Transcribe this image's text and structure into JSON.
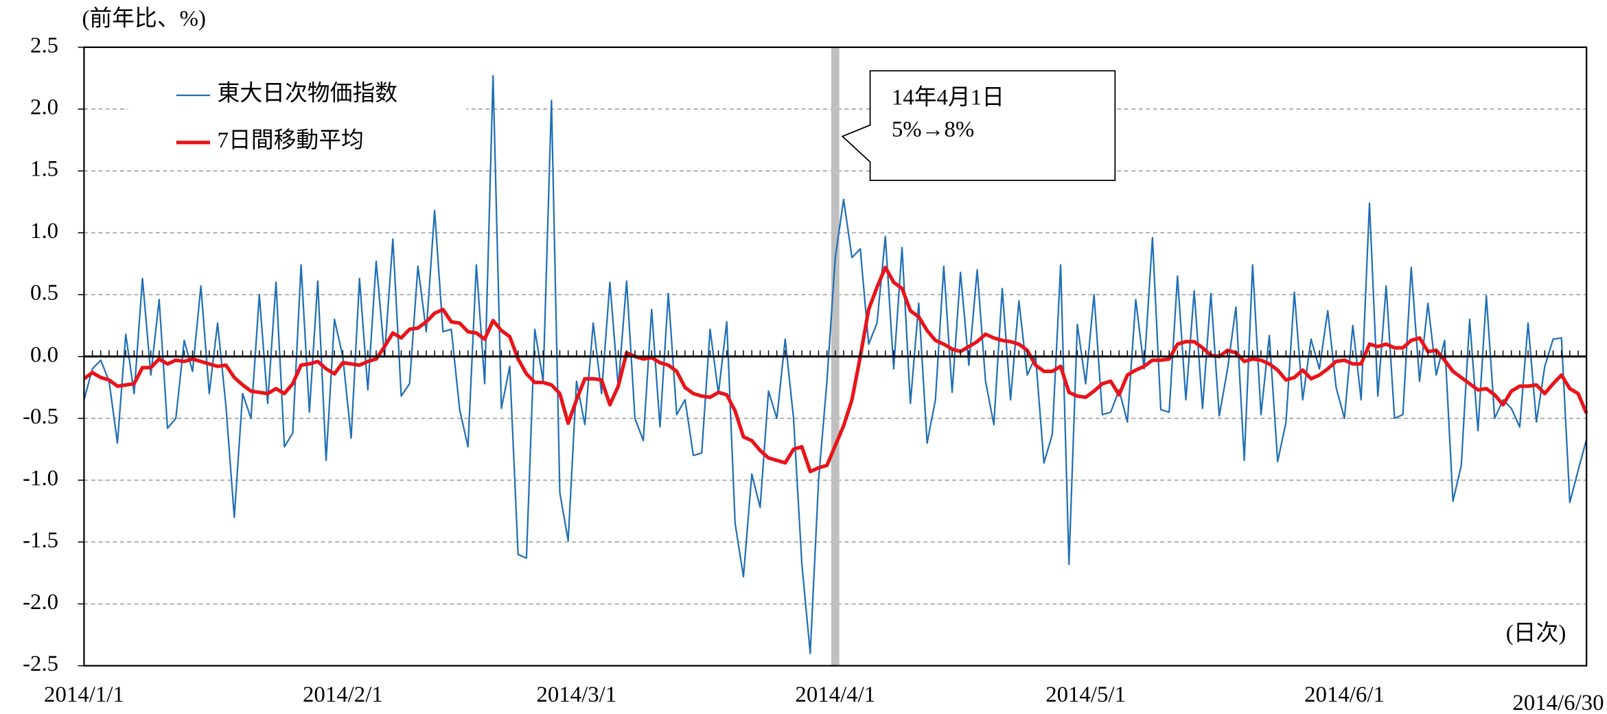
{
  "chart_data": {
    "type": "line",
    "y_unit_label": "(前年比、%)",
    "x_unit_label": "(日次)",
    "annotation": {
      "lines": [
        "14年4月1日",
        "5%→8%"
      ],
      "x": "2014/4/1",
      "line_color": "#c0c0c0"
    },
    "categories": [
      "2014/1/1",
      null,
      null,
      null,
      null,
      null,
      null,
      null,
      null,
      null,
      null,
      null,
      null,
      null,
      null,
      null,
      null,
      null,
      null,
      null,
      null,
      null,
      null,
      null,
      null,
      null,
      null,
      null,
      null,
      null,
      null,
      "2014/2/1",
      null,
      null,
      null,
      null,
      null,
      null,
      null,
      null,
      null,
      null,
      null,
      null,
      null,
      null,
      null,
      null,
      null,
      null,
      null,
      null,
      null,
      null,
      null,
      null,
      null,
      null,
      null,
      "2014/3/1",
      null,
      null,
      null,
      null,
      null,
      null,
      null,
      null,
      null,
      null,
      null,
      null,
      null,
      null,
      null,
      null,
      null,
      null,
      null,
      null,
      null,
      null,
      null,
      null,
      null,
      null,
      null,
      null,
      null,
      null,
      "2014/4/1",
      null,
      null,
      null,
      null,
      null,
      null,
      null,
      null,
      null,
      null,
      null,
      null,
      null,
      null,
      null,
      null,
      null,
      null,
      null,
      null,
      null,
      null,
      null,
      null,
      null,
      null,
      null,
      null,
      null,
      "2014/5/1",
      null,
      null,
      null,
      null,
      null,
      null,
      null,
      null,
      null,
      null,
      null,
      null,
      null,
      null,
      null,
      null,
      null,
      null,
      null,
      null,
      null,
      null,
      null,
      null,
      null,
      null,
      null,
      null,
      null,
      null,
      "2014/6/1",
      null,
      null,
      null,
      null,
      null,
      null,
      null,
      null,
      null,
      null,
      null,
      null,
      null,
      null,
      null,
      null,
      null,
      null,
      null,
      null,
      null,
      null,
      null,
      null,
      null,
      null,
      null,
      null,
      "2014/6/30"
    ],
    "series": [
      {
        "name": "東大日次物価指数",
        "color": "#1f6fb5",
        "width": 1.5,
        "values": [
          -0.35,
          -0.1,
          -0.03,
          -0.2,
          -0.7,
          0.18,
          -0.3,
          0.63,
          -0.15,
          0.46,
          -0.58,
          -0.5,
          0.13,
          -0.12,
          0.57,
          -0.3,
          0.27,
          -0.4,
          -1.3,
          -0.3,
          -0.5,
          0.5,
          -0.38,
          0.6,
          -0.73,
          -0.62,
          0.74,
          -0.45,
          0.61,
          -0.84,
          0.3,
          0.0,
          -0.66,
          0.63,
          -0.27,
          0.77,
          0.0,
          0.95,
          -0.32,
          -0.22,
          0.73,
          0.2,
          1.18,
          0.2,
          0.22,
          -0.43,
          -0.73,
          0.74,
          -0.22,
          2.27,
          -0.42,
          -0.08,
          -1.6,
          -1.63,
          0.22,
          -0.2,
          2.07,
          -1.1,
          -1.49,
          -0.2,
          -0.55,
          0.27,
          -0.3,
          0.6,
          -0.25,
          0.61,
          -0.5,
          -0.68,
          0.38,
          -0.57,
          0.51,
          -0.47,
          -0.35,
          -0.8,
          -0.78,
          0.22,
          -0.3,
          0.28,
          -1.35,
          -1.78,
          -0.95,
          -1.22,
          -0.28,
          -0.5,
          0.14,
          -0.5,
          -1.68,
          -2.4,
          -1.0,
          -0.2,
          0.8,
          1.27,
          0.8,
          0.87,
          0.1,
          0.27,
          0.97,
          -0.1,
          0.88,
          -0.38,
          0.43,
          -0.7,
          -0.35,
          0.73,
          -0.29,
          0.68,
          -0.07,
          0.7,
          -0.2,
          -0.55,
          0.55,
          -0.35,
          0.45,
          -0.15,
          0.0,
          -0.86,
          -0.63,
          0.74,
          -1.68,
          0.26,
          -0.22,
          0.5,
          -0.47,
          -0.45,
          -0.27,
          -0.53,
          0.46,
          -0.1,
          0.96,
          -0.43,
          -0.45,
          0.65,
          -0.35,
          0.53,
          -0.42,
          0.51,
          -0.48,
          -0.1,
          0.4,
          -0.84,
          0.74,
          -0.47,
          0.17,
          -0.85,
          -0.53,
          0.52,
          -0.35,
          0.14,
          -0.1,
          0.37,
          -0.25,
          -0.5,
          0.25,
          -0.35,
          1.24,
          -0.32,
          0.57,
          -0.5,
          -0.47,
          0.72,
          -0.2,
          0.43,
          -0.15,
          0.13,
          -1.17,
          -0.88,
          0.3,
          -0.6,
          0.49,
          -0.5,
          -0.35,
          -0.42,
          -0.57,
          0.27,
          -0.53,
          -0.08,
          0.14,
          0.15,
          -1.18,
          -0.92,
          -0.67
        ]
      },
      {
        "name": "7日間移動平均",
        "color": "#e8141a",
        "width": 3.5,
        "values": [
          -0.18,
          -0.13,
          -0.17,
          -0.19,
          -0.24,
          -0.23,
          -0.22,
          -0.09,
          -0.09,
          -0.02,
          -0.06,
          -0.03,
          -0.04,
          -0.02,
          -0.04,
          -0.06,
          -0.08,
          -0.07,
          -0.17,
          -0.23,
          -0.28,
          -0.29,
          -0.3,
          -0.26,
          -0.3,
          -0.22,
          -0.07,
          -0.06,
          -0.04,
          -0.1,
          -0.14,
          -0.05,
          -0.06,
          -0.07,
          -0.04,
          -0.02,
          0.08,
          0.19,
          0.15,
          0.22,
          0.23,
          0.28,
          0.35,
          0.38,
          0.28,
          0.27,
          0.2,
          0.19,
          0.14,
          0.29,
          0.21,
          0.16,
          -0.02,
          -0.14,
          -0.21,
          -0.21,
          -0.23,
          -0.3,
          -0.54,
          -0.35,
          -0.18,
          -0.18,
          -0.19,
          -0.39,
          -0.24,
          0.03,
          0.0,
          -0.02,
          -0.01,
          -0.05,
          -0.07,
          -0.12,
          -0.25,
          -0.3,
          -0.32,
          -0.33,
          -0.29,
          -0.31,
          -0.44,
          -0.65,
          -0.68,
          -0.76,
          -0.82,
          -0.84,
          -0.86,
          -0.75,
          -0.73,
          -0.93,
          -0.9,
          -0.88,
          -0.72,
          -0.56,
          -0.35,
          0.0,
          0.38,
          0.56,
          0.72,
          0.6,
          0.55,
          0.37,
          0.32,
          0.21,
          0.13,
          0.1,
          0.06,
          0.04,
          0.08,
          0.12,
          0.18,
          0.15,
          0.13,
          0.12,
          0.1,
          0.05,
          -0.07,
          -0.12,
          -0.12,
          -0.08,
          -0.29,
          -0.32,
          -0.33,
          -0.28,
          -0.22,
          -0.2,
          -0.31,
          -0.15,
          -0.11,
          -0.08,
          -0.03,
          -0.03,
          -0.02,
          0.1,
          0.12,
          0.12,
          0.07,
          0.01,
          0.0,
          0.05,
          0.03,
          -0.04,
          -0.02,
          -0.03,
          -0.06,
          -0.11,
          -0.19,
          -0.17,
          -0.11,
          -0.18,
          -0.15,
          -0.1,
          -0.04,
          -0.03,
          -0.06,
          -0.06,
          0.1,
          0.08,
          0.1,
          0.07,
          0.07,
          0.13,
          0.15,
          0.04,
          0.05,
          -0.03,
          -0.12,
          -0.17,
          -0.22,
          -0.27,
          -0.26,
          -0.31,
          -0.39,
          -0.28,
          -0.24,
          -0.24,
          -0.23,
          -0.3,
          -0.22,
          -0.15,
          -0.26,
          -0.3,
          -0.46
        ]
      }
    ],
    "ylim": [
      -2.5,
      2.5
    ],
    "yticks": [
      2.5,
      {
        "value": 2,
        "label": "2.0"
      },
      1.5,
      {
        "value": 1,
        "label": "1.0"
      },
      0.5,
      {
        "value": 0,
        "label": "0.0"
      },
      -0.5,
      {
        "value": -1,
        "label": "-1.0"
      },
      -1.5,
      {
        "value": -2,
        "label": "-2.0"
      },
      -2.5
    ],
    "grid": true,
    "legend": "upper left"
  }
}
